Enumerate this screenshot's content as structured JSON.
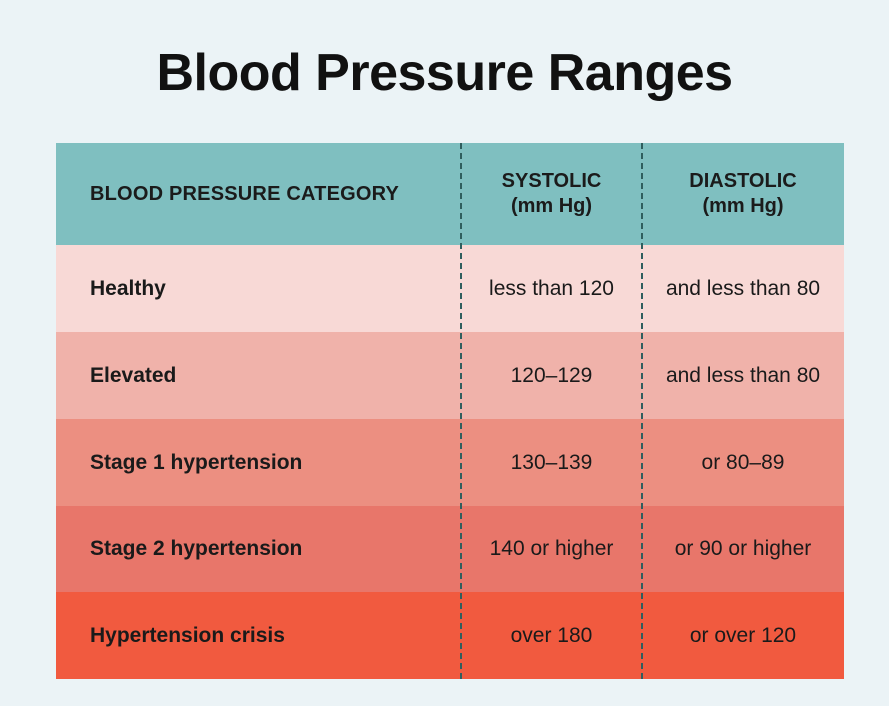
{
  "title": "Blood Pressure Ranges",
  "colors": {
    "background": "#ebf3f6",
    "header": "#7fbfc0",
    "healthy": "#f8d9d6",
    "elevated": "#f0b2aa",
    "stage1": "#ec8f81",
    "stage2": "#e8766a",
    "crisis": "#f15a3f",
    "divider": "#2f5e5e"
  },
  "table": {
    "headers": {
      "category": "BLOOD PRESSURE CATEGORY",
      "systolic_line1": "SYSTOLIC",
      "systolic_line2": "(mm Hg)",
      "diastolic_line1": "DIASTOLIC",
      "diastolic_line2": "(mm Hg)"
    },
    "rows": [
      {
        "category": "Healthy",
        "systolic": "less than 120",
        "diastolic": "and less than 80"
      },
      {
        "category": "Elevated",
        "systolic": "120–129",
        "diastolic": "and less than 80"
      },
      {
        "category": "Stage 1 hypertension",
        "systolic": "130–139",
        "diastolic": "or 80–89"
      },
      {
        "category": "Stage 2 hypertension",
        "systolic": "140 or higher",
        "diastolic": "or 90 or higher"
      },
      {
        "category": "Hypertension crisis",
        "systolic": "over 180",
        "diastolic": "or over 120"
      }
    ]
  }
}
